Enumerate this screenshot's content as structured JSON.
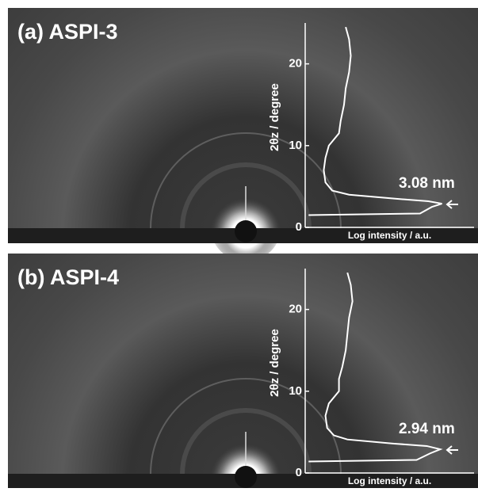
{
  "chart_data": [
    {
      "type": "line",
      "title": "(a) ASPI-3",
      "y_label": "2θz / degree",
      "x_label": "Log intensity / a.u.",
      "annotation": "3.08 nm",
      "ylim": [
        0,
        25
      ],
      "yticks": [
        0,
        10,
        20
      ],
      "xlim": [
        0,
        1
      ],
      "color": "#ffffff",
      "series": [
        {
          "x": [
            0.02,
            0.68,
            0.75,
            0.81,
            0.73,
            0.54,
            0.26,
            0.16,
            0.12,
            0.11,
            0.12,
            0.14,
            0.2,
            0.21,
            0.23,
            0.24,
            0.26,
            0.27,
            0.26,
            0.24
          ],
          "values": [
            1.5,
            1.7,
            2.5,
            2.9,
            3.2,
            3.5,
            4,
            4.5,
            5.5,
            7,
            8.5,
            10,
            11.5,
            13,
            15,
            17,
            19,
            21,
            23,
            24.5
          ]
        }
      ]
    },
    {
      "type": "line",
      "title": "(b) ASPI-4",
      "y_label": "2θz / degree",
      "x_label": "Log intensity / a.u.",
      "annotation": "2.94 nm",
      "ylim": [
        0,
        25
      ],
      "yticks": [
        0,
        10,
        20
      ],
      "xlim": [
        0,
        1
      ],
      "color": "#ffffff",
      "series": [
        {
          "x": [
            0.02,
            0.66,
            0.74,
            0.8,
            0.72,
            0.52,
            0.25,
            0.17,
            0.13,
            0.12,
            0.14,
            0.2,
            0.2,
            0.22,
            0.24,
            0.25,
            0.26,
            0.28,
            0.27,
            0.25
          ],
          "values": [
            1.4,
            1.6,
            2.4,
            2.9,
            3.3,
            3.6,
            4.1,
            4.6,
            5.5,
            7,
            8.5,
            10,
            11.5,
            13,
            15,
            17,
            19,
            21,
            23,
            24.5
          ]
        }
      ]
    }
  ]
}
